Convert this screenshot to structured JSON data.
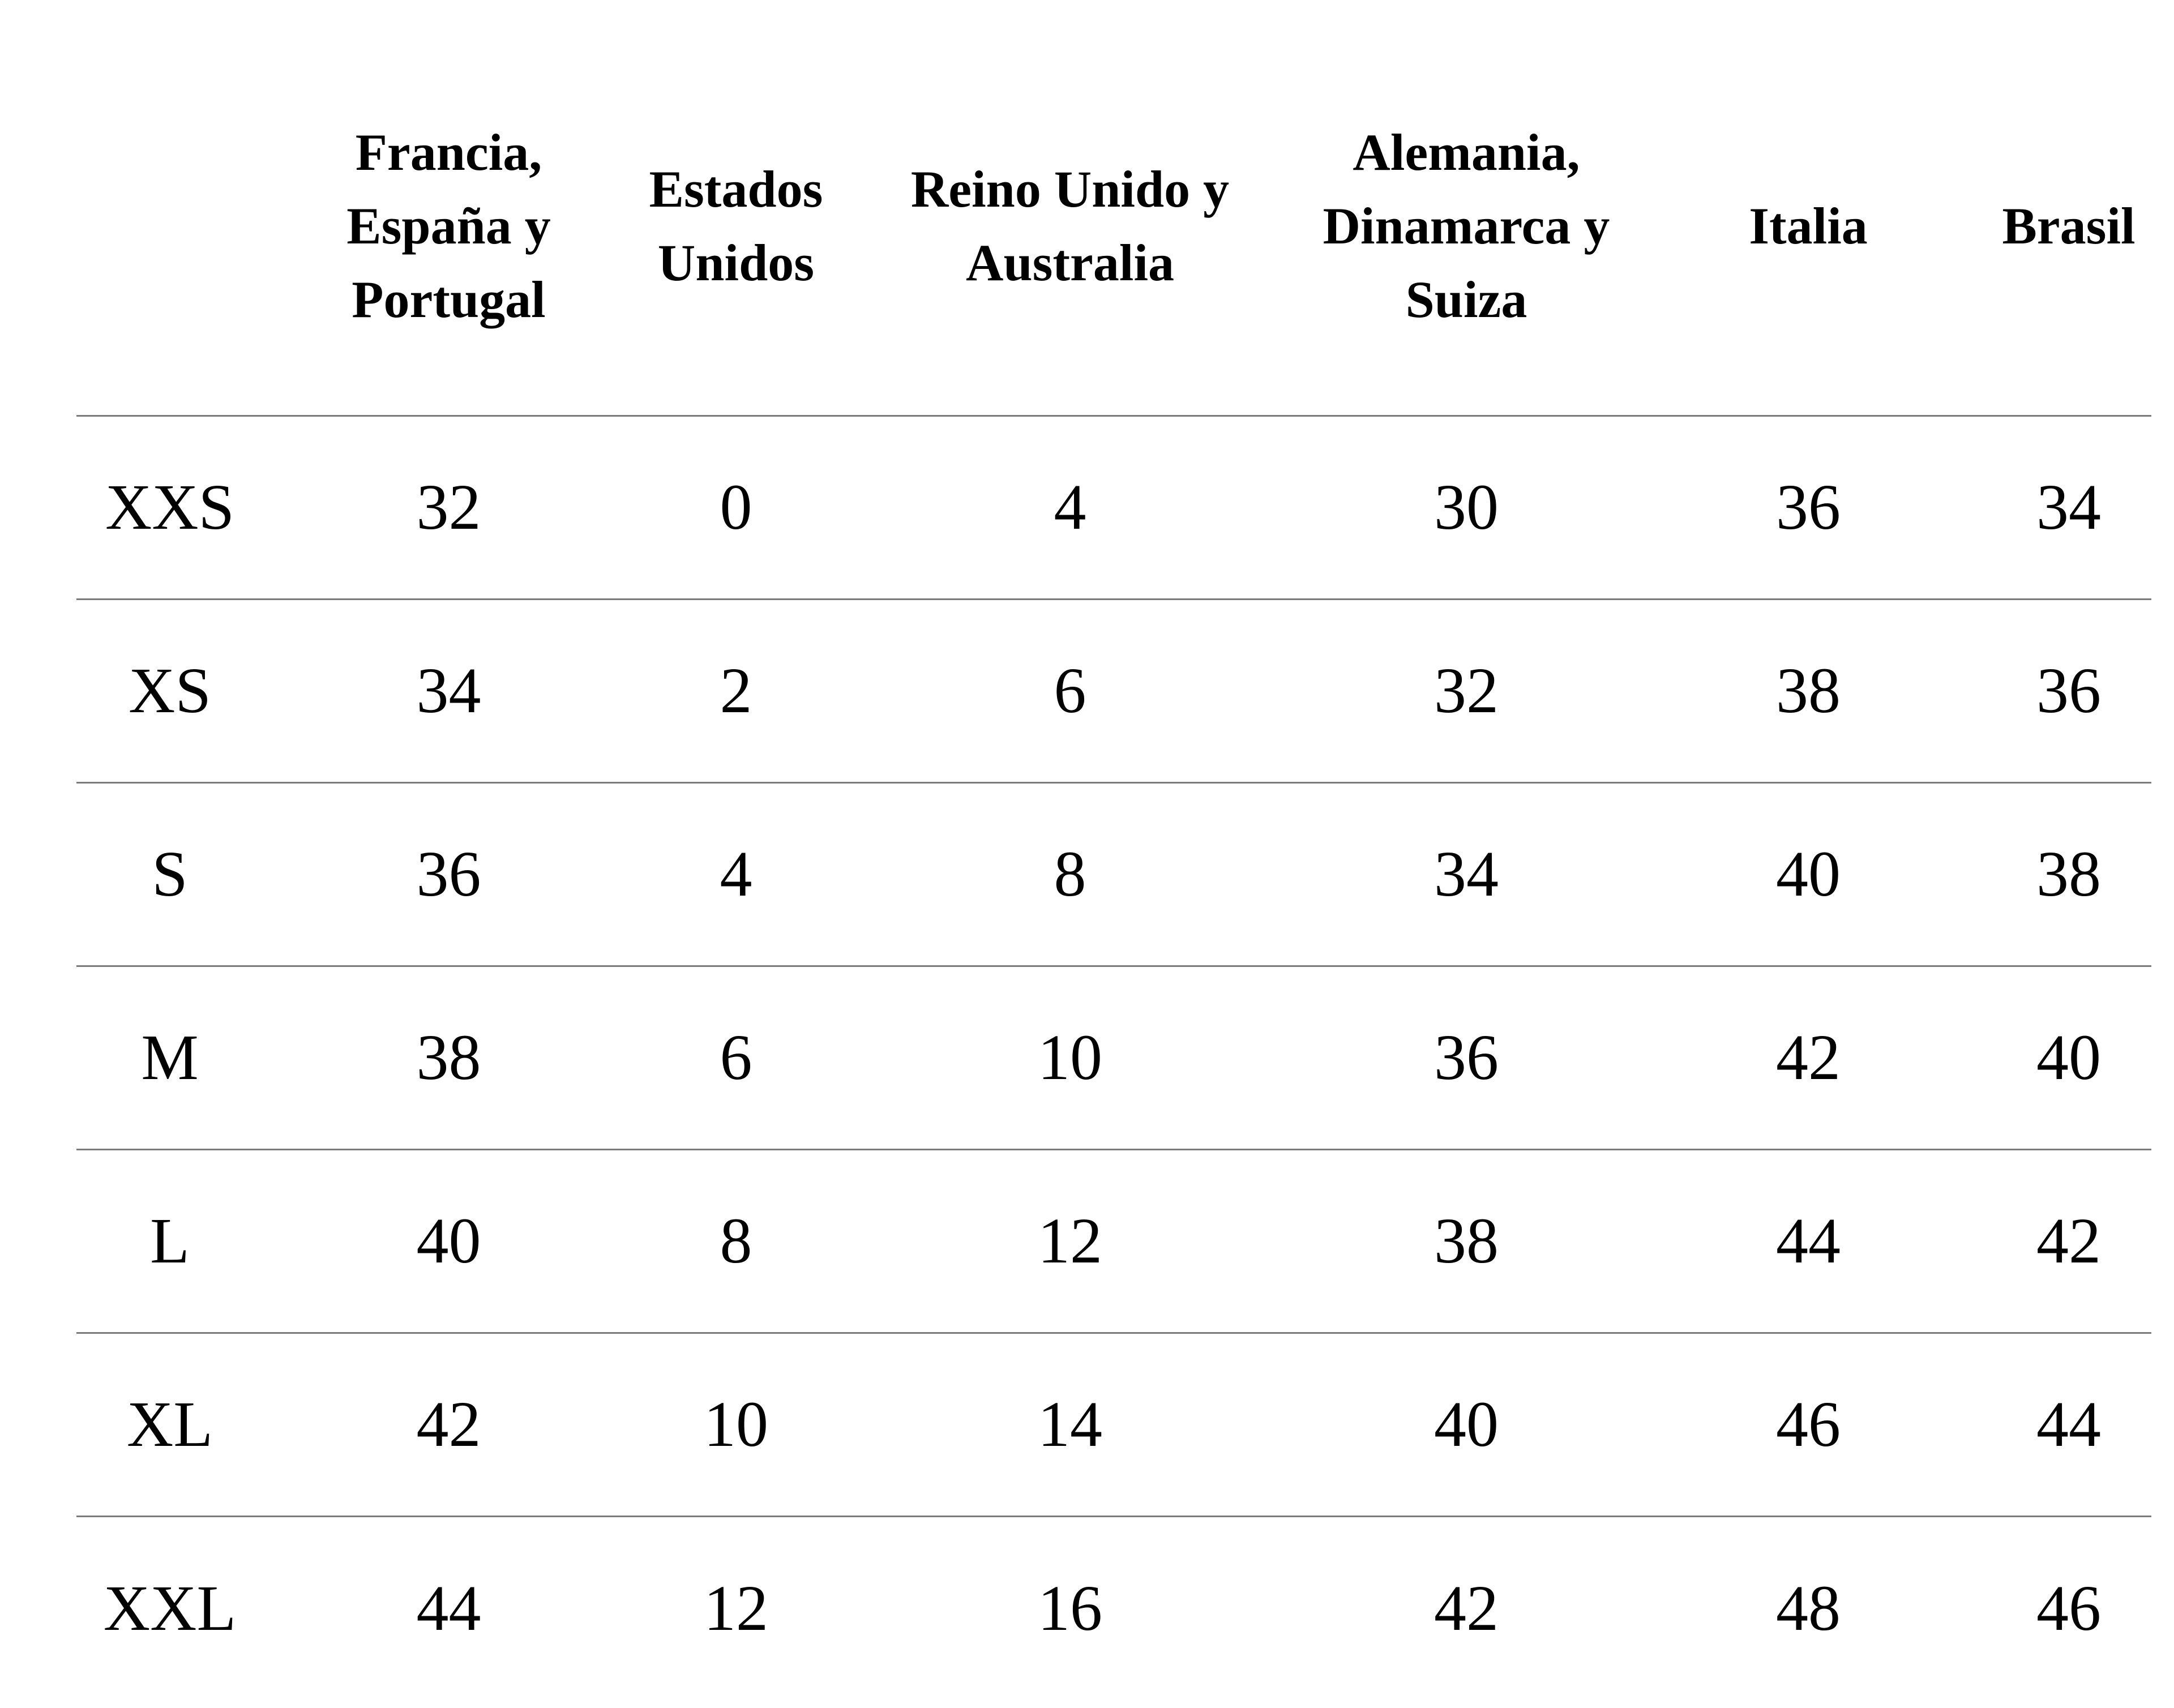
{
  "table": {
    "divider_color": "#7b7b7b",
    "text_color": "#000000",
    "columns": [
      {
        "label": ""
      },
      {
        "label": "Francia, España y Portugal",
        "lines": [
          "Francia,",
          "España y",
          "Portugal"
        ]
      },
      {
        "label": "Estados Unidos",
        "lines": [
          "Estados",
          "Unidos"
        ]
      },
      {
        "label": "Reino Unido y Australia",
        "lines": [
          "Reino Unido y",
          "Australia"
        ]
      },
      {
        "label": "Alemania, Dinamarca y Suiza",
        "lines": [
          "Alemania,",
          "Dinamarca y",
          "Suiza"
        ]
      },
      {
        "label": "Italia",
        "lines": [
          "Italia"
        ]
      },
      {
        "label": "Brasil",
        "lines": [
          "Brasil"
        ]
      }
    ],
    "rows": [
      {
        "size": "XXS",
        "values": [
          "32",
          "0",
          "4",
          "30",
          "36",
          "34"
        ]
      },
      {
        "size": "XS",
        "values": [
          "34",
          "2",
          "6",
          "32",
          "38",
          "36"
        ]
      },
      {
        "size": "S",
        "values": [
          "36",
          "4",
          "8",
          "34",
          "40",
          "38"
        ]
      },
      {
        "size": "M",
        "values": [
          "38",
          "6",
          "10",
          "36",
          "42",
          "40"
        ]
      },
      {
        "size": "L",
        "values": [
          "40",
          "8",
          "12",
          "38",
          "44",
          "42"
        ]
      },
      {
        "size": "XL",
        "values": [
          "42",
          "10",
          "14",
          "40",
          "46",
          "44"
        ]
      },
      {
        "size": "XXL",
        "values": [
          "44",
          "12",
          "16",
          "42",
          "48",
          "46"
        ]
      }
    ]
  }
}
